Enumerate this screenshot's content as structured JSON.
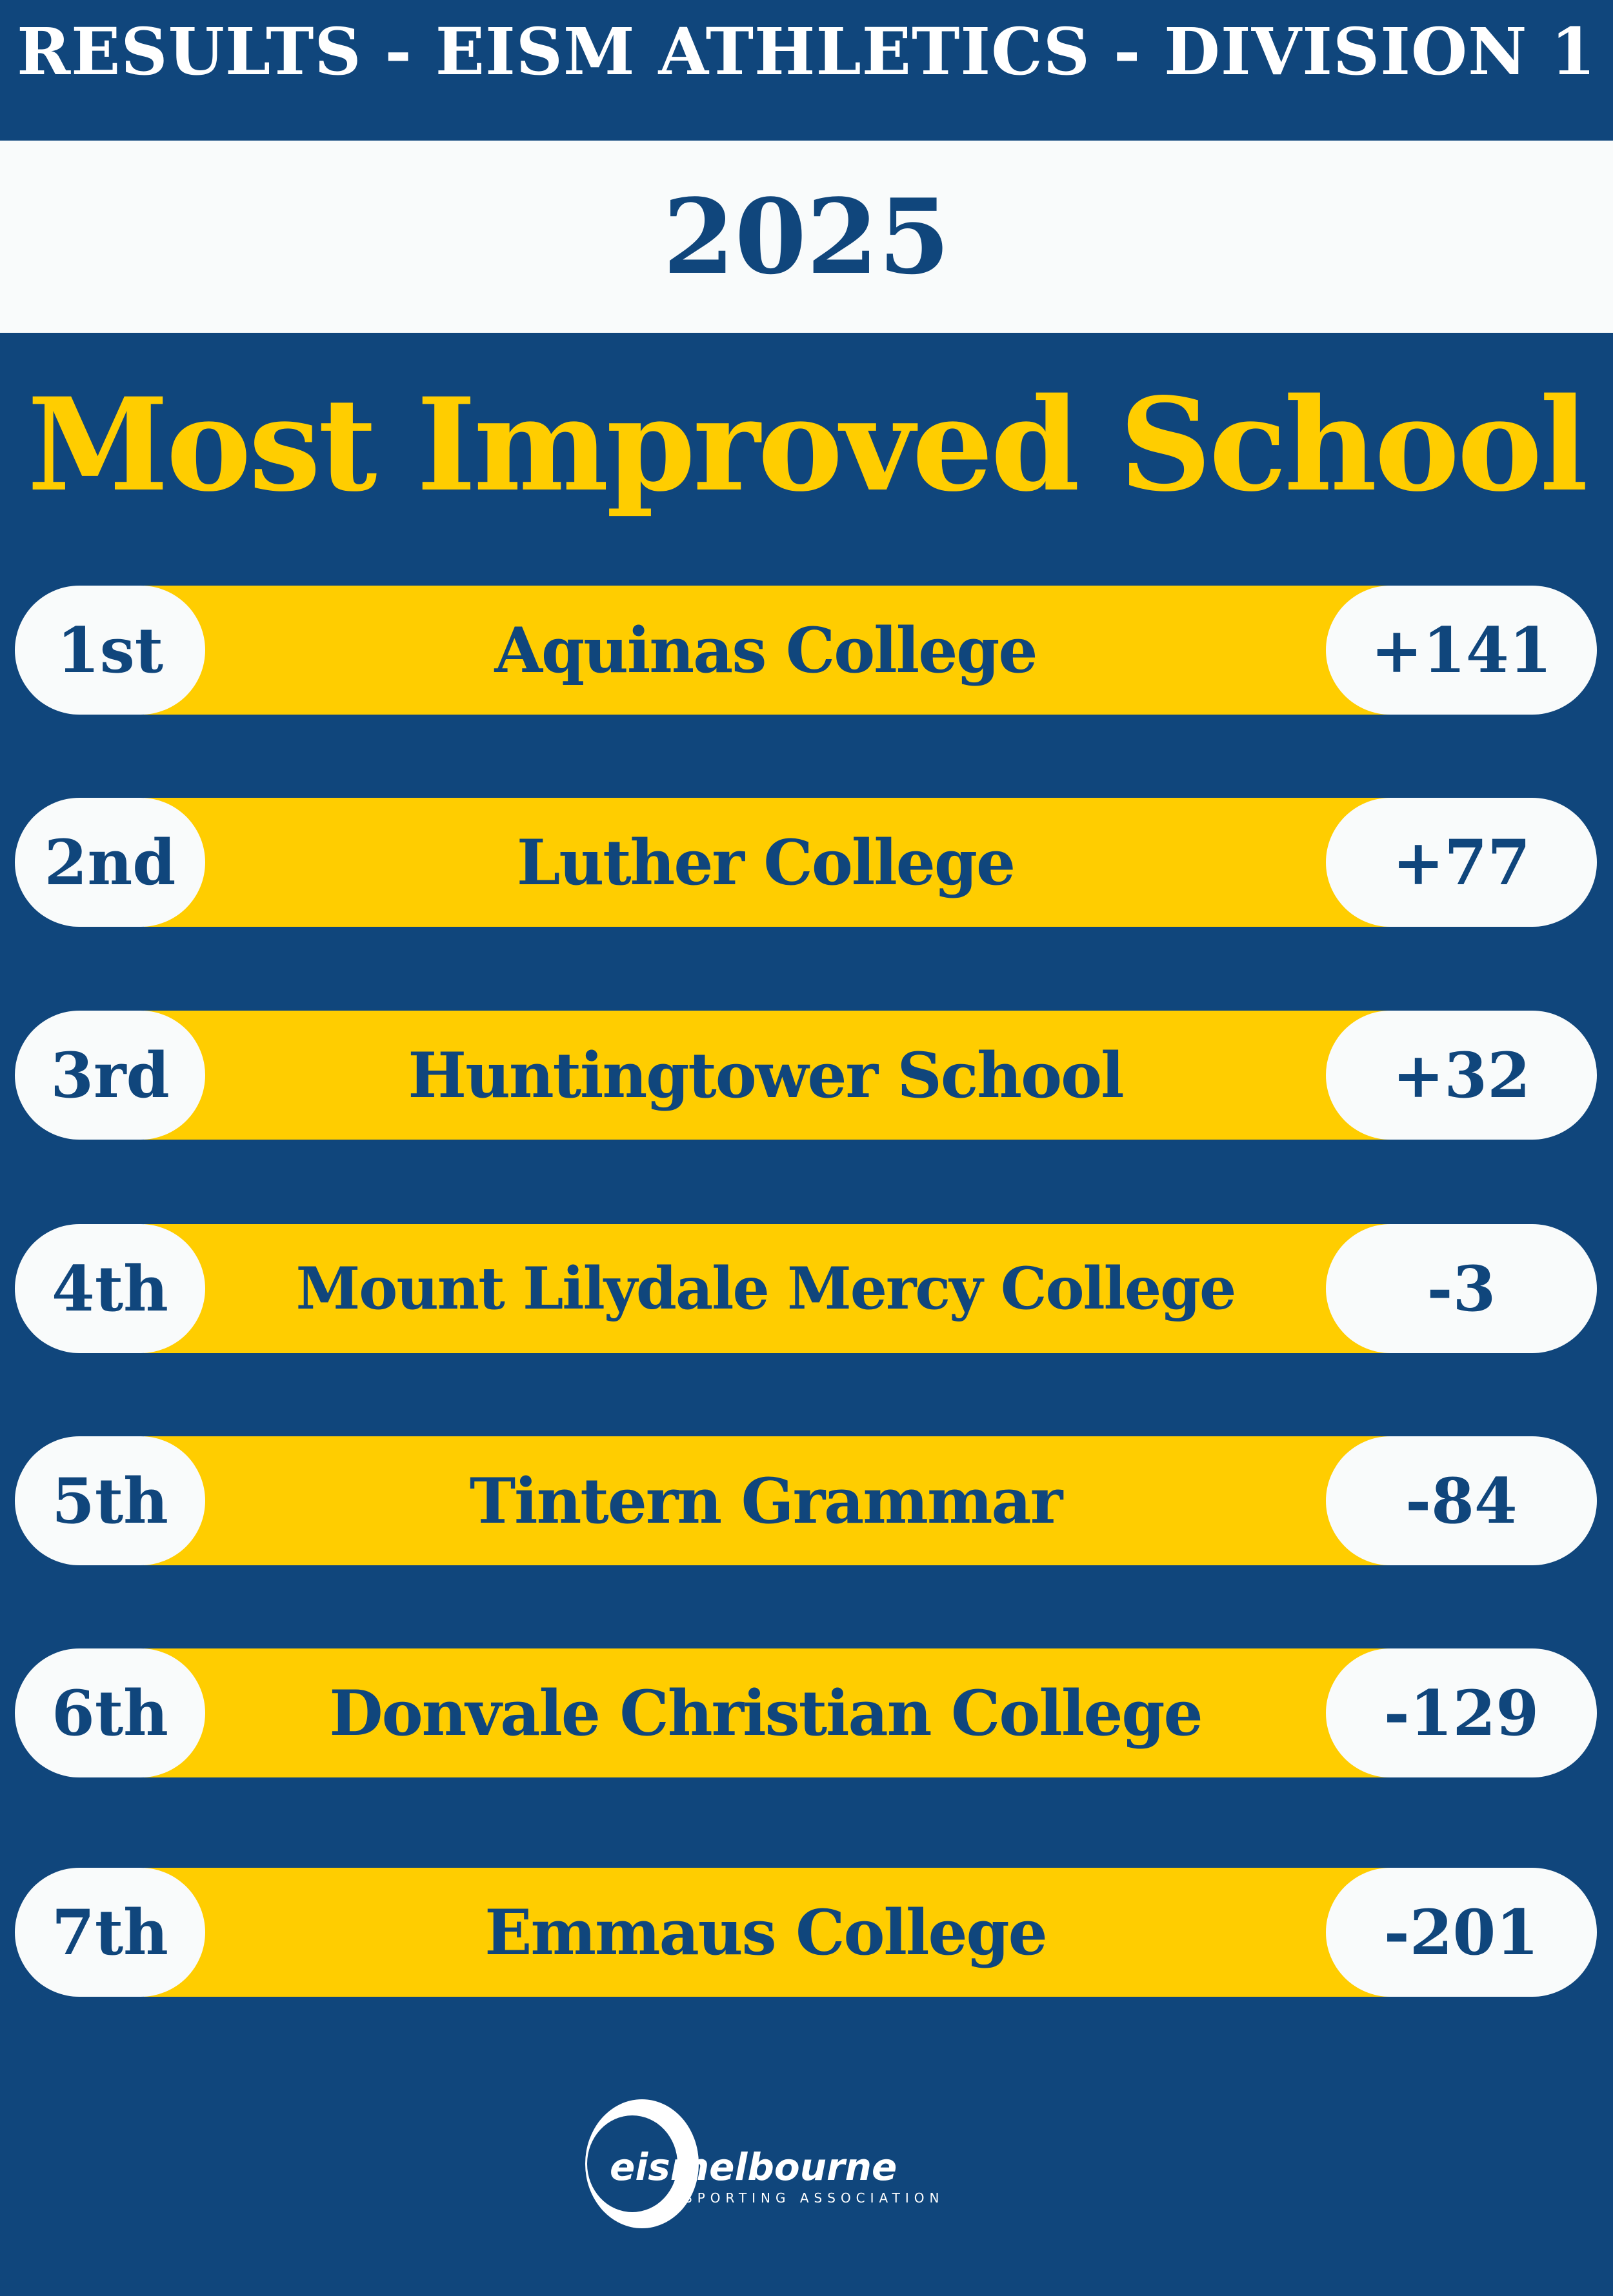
{
  "header": {
    "title": "RESULTS - EISM ATHLETICS - DIVISION 1"
  },
  "year": "2025",
  "award_title": "Most Improved School",
  "colors": {
    "background": "#10467c",
    "accent": "#ffcd00",
    "pill": "#f9fbfb"
  },
  "results": [
    {
      "rank": "1st",
      "school": "Aquinas College",
      "score": "+141"
    },
    {
      "rank": "2nd",
      "school": "Luther College",
      "score": "+77"
    },
    {
      "rank": "3rd",
      "school": "Huntingtower School",
      "score": "+32"
    },
    {
      "rank": "4th",
      "school": "Mount Lilydale Mercy College",
      "score": "-3"
    },
    {
      "rank": "5th",
      "school": "Tintern Grammar",
      "score": "-84"
    },
    {
      "rank": "6th",
      "school": "Donvale Christian College",
      "score": "-129"
    },
    {
      "rank": "7th",
      "school": "Emmaus College",
      "score": "-201"
    }
  ],
  "logo": {
    "wordmark": "eismelbourne",
    "tagline": "SPORTING ASSOCIATION"
  }
}
